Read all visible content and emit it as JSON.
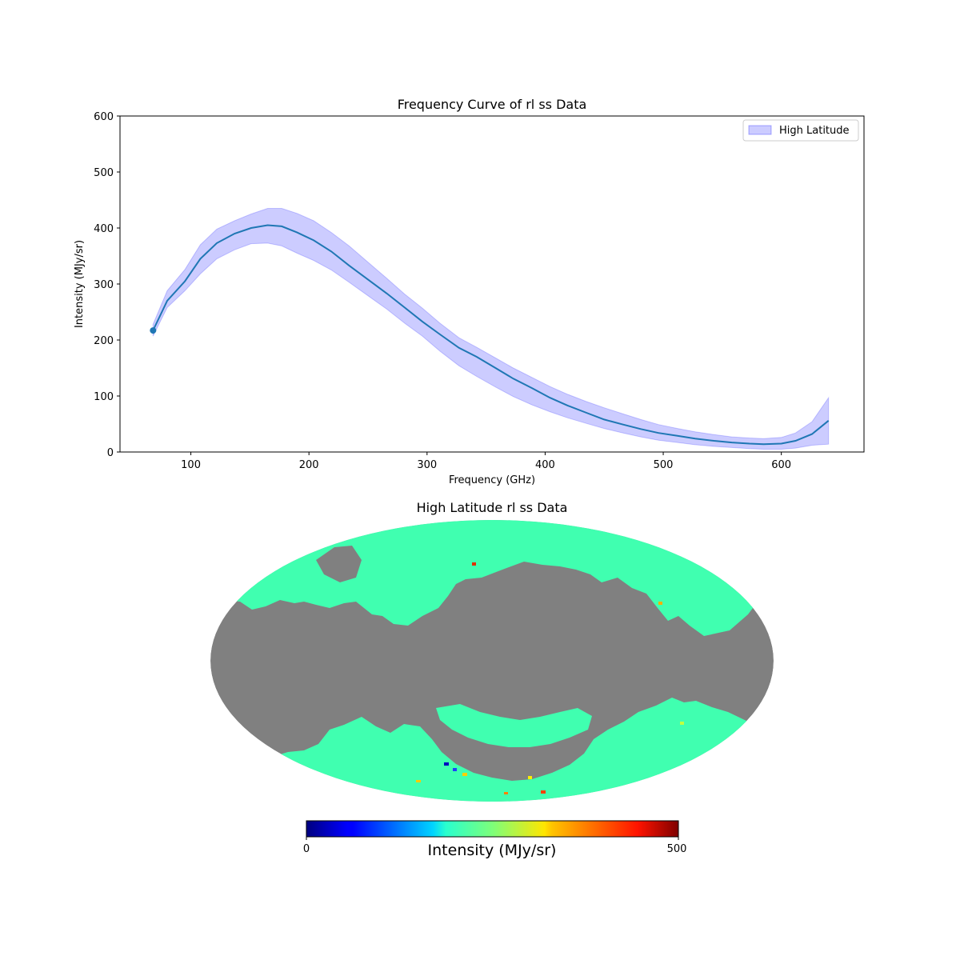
{
  "chart_data": [
    {
      "type": "line",
      "title": "Frequency Curve of rl ss Data",
      "xlabel": "Frequency (GHz)",
      "ylabel": "Intensity (MJy/sr)",
      "xlim": [
        40,
        670
      ],
      "ylim": [
        0,
        600
      ],
      "xticks": [
        "100",
        "200",
        "300",
        "400",
        "500",
        "600"
      ],
      "yticks": [
        "0",
        "100",
        "200",
        "300",
        "400",
        "500",
        "600"
      ],
      "grid": false,
      "legend_position": "top-right",
      "colors": {
        "line": "#1f77b4",
        "band_fill": "#0000ff",
        "band_edge": "#0000ff"
      },
      "series": [
        {
          "name": "",
          "x": [
            68,
            80,
            95,
            108,
            122,
            137,
            151,
            165,
            177,
            190,
            204,
            219,
            234,
            250,
            266,
            281,
            296,
            311,
            327,
            342,
            358,
            373,
            389,
            404,
            419,
            435,
            450,
            466,
            481,
            496,
            512,
            527,
            543,
            558,
            573,
            585,
            600,
            612,
            626,
            640
          ],
          "y": [
            217,
            270,
            305,
            345,
            373,
            390,
            400,
            405,
            403,
            392,
            378,
            358,
            333,
            308,
            283,
            258,
            233,
            210,
            186,
            170,
            150,
            131,
            114,
            97,
            83,
            70,
            58,
            49,
            41,
            34,
            29,
            24,
            20,
            17,
            15,
            14,
            15,
            20,
            32,
            56
          ],
          "lower": [
            207,
            258,
            288,
            318,
            345,
            361,
            372,
            373,
            368,
            355,
            342,
            325,
            303,
            279,
            255,
            230,
            207,
            180,
            154,
            135,
            116,
            99,
            84,
            72,
            61,
            51,
            42,
            34,
            27,
            21,
            17,
            13,
            10,
            8,
            6,
            5,
            5,
            7,
            12,
            14
          ],
          "upper": [
            228,
            288,
            326,
            370,
            398,
            413,
            425,
            435,
            435,
            426,
            413,
            392,
            368,
            339,
            310,
            282,
            257,
            230,
            204,
            187,
            168,
            150,
            133,
            117,
            103,
            90,
            79,
            68,
            58,
            49,
            42,
            36,
            31,
            27,
            25,
            24,
            26,
            34,
            54,
            97
          ]
        }
      ],
      "marker_point": {
        "x": 68,
        "y": 217
      },
      "legend": [
        {
          "label": "High Latitude",
          "swatch": "band"
        }
      ]
    },
    {
      "type": "heatmap",
      "projection": "mollweide",
      "title": "High Latitude rl ss Data",
      "masked_color": "#808080",
      "base_color": "#40ffb0",
      "colorbar": {
        "label": "Intensity (MJy/sr)",
        "min_label": "0",
        "max_label": "500",
        "colormap": "jet",
        "orientation": "horizontal"
      }
    }
  ]
}
